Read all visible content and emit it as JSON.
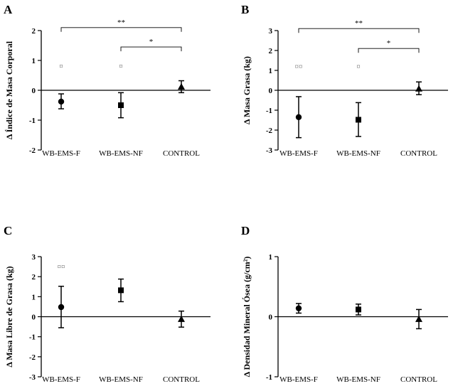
{
  "chart_data": [
    {
      "type": "scatter",
      "panel": "A",
      "ylabel": "Δ Índice de Masa Corporal",
      "ylim": [
        -2,
        2
      ],
      "yticks": [
        -2,
        -1,
        0,
        1,
        2
      ],
      "categories": [
        "WB-EMS-F",
        "WB-EMS-NF",
        "CONTROL"
      ],
      "series": [
        {
          "name": "WB-EMS-F",
          "marker": "circle",
          "mean": -0.38,
          "err_low": -0.62,
          "err_high": -0.12
        },
        {
          "name": "WB-EMS-NF",
          "marker": "square",
          "mean": -0.5,
          "err_low": -0.92,
          "err_high": -0.08
        },
        {
          "name": "CONTROL",
          "marker": "triangle",
          "mean": 0.12,
          "err_low": -0.08,
          "err_high": 0.32
        }
      ],
      "hash_marks": [
        {
          "category": "WB-EMS-F",
          "text": "¤",
          "y": 0.82
        },
        {
          "category": "WB-EMS-NF",
          "text": "¤",
          "y": 0.82
        }
      ],
      "significance": [
        {
          "from": "WB-EMS-F",
          "to": "CONTROL",
          "label": "**",
          "y": 2.1
        },
        {
          "from": "WB-EMS-NF",
          "to": "CONTROL",
          "label": "*",
          "y": 1.45
        }
      ]
    },
    {
      "type": "scatter",
      "panel": "B",
      "ylabel": "Δ Masa Grasa (kg)",
      "ylim": [
        -3,
        3
      ],
      "yticks": [
        -3,
        -2,
        -1,
        0,
        1,
        2,
        3
      ],
      "categories": [
        "WB-EMS-F",
        "WB-EMS-NF",
        "CONTROL"
      ],
      "series": [
        {
          "name": "WB-EMS-F",
          "marker": "circle",
          "mean": -1.35,
          "err_low": -2.38,
          "err_high": -0.32
        },
        {
          "name": "WB-EMS-NF",
          "marker": "square",
          "mean": -1.48,
          "err_low": -2.32,
          "err_high": -0.62
        },
        {
          "name": "CONTROL",
          "marker": "triangle",
          "mean": 0.08,
          "err_low": -0.22,
          "err_high": 0.42
        }
      ],
      "hash_marks": [
        {
          "category": "WB-EMS-F",
          "text": "¤¤",
          "y": 1.22
        },
        {
          "category": "WB-EMS-NF",
          "text": "¤",
          "y": 1.22
        }
      ],
      "significance": [
        {
          "from": "WB-EMS-F",
          "to": "CONTROL",
          "label": "**",
          "y": 3.1
        },
        {
          "from": "WB-EMS-NF",
          "to": "CONTROL",
          "label": "*",
          "y": 2.1
        }
      ]
    },
    {
      "type": "scatter",
      "panel": "C",
      "ylabel": "Δ Masa Libre de Grasa (kg)",
      "ylim": [
        -3,
        3
      ],
      "yticks": [
        -3,
        -2,
        -1,
        0,
        1,
        2,
        3
      ],
      "categories": [
        "WB-EMS-F",
        "WB-EMS-NF",
        "CONTROL"
      ],
      "series": [
        {
          "name": "WB-EMS-F",
          "marker": "circle",
          "mean": 0.48,
          "err_low": -0.55,
          "err_high": 1.52
        },
        {
          "name": "WB-EMS-NF",
          "marker": "square",
          "mean": 1.32,
          "err_low": 0.75,
          "err_high": 1.88
        },
        {
          "name": "CONTROL",
          "marker": "triangle",
          "mean": -0.12,
          "err_low": -0.52,
          "err_high": 0.28
        }
      ],
      "hash_marks": [
        {
          "category": "WB-EMS-F",
          "text": "¤¤",
          "y": 2.52
        }
      ],
      "significance": []
    },
    {
      "type": "scatter",
      "panel": "D",
      "ylabel": "Δ Densidad Mineral Ósea (g/cm²)",
      "ylim": [
        -1,
        1
      ],
      "yticks": [
        -1,
        0,
        1
      ],
      "categories": [
        "WB-EMS-F",
        "WB-EMS-NF",
        "CONTROL"
      ],
      "series": [
        {
          "name": "WB-EMS-F",
          "marker": "circle",
          "mean": 0.14,
          "err_low": 0.06,
          "err_high": 0.22
        },
        {
          "name": "WB-EMS-NF",
          "marker": "square",
          "mean": 0.12,
          "err_low": 0.03,
          "err_high": 0.21
        },
        {
          "name": "CONTROL",
          "marker": "triangle",
          "mean": -0.04,
          "err_low": -0.2,
          "err_high": 0.12
        }
      ],
      "hash_marks": [],
      "significance": []
    }
  ]
}
